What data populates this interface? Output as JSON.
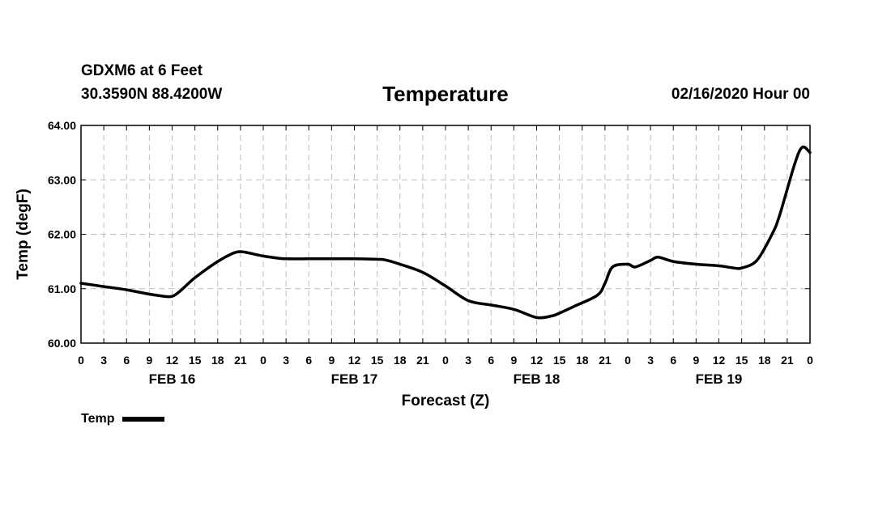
{
  "header": {
    "station": "GDXM6 at 6 Feet",
    "coords": "30.3590N 88.4200W",
    "title": "Temperature",
    "datetime": "02/16/2020 Hour 00"
  },
  "legend": {
    "label": "Temp"
  },
  "chart_data": {
    "type": "line",
    "title": "Temperature",
    "xlabel": "Forecast (Z)",
    "ylabel": "Temp (degF)",
    "ylim": [
      60.0,
      64.0
    ],
    "yticks": [
      "60.00",
      "61.00",
      "62.00",
      "63.00",
      "64.00"
    ],
    "xlim_hours": [
      0,
      96
    ],
    "xtick_labels": [
      "0",
      "3",
      "6",
      "9",
      "12",
      "15",
      "18",
      "21",
      "0",
      "3",
      "6",
      "9",
      "12",
      "15",
      "18",
      "21",
      "0",
      "3",
      "6",
      "9",
      "12",
      "15",
      "18",
      "21",
      "0",
      "3",
      "6",
      "9",
      "12",
      "15",
      "18",
      "21",
      "0"
    ],
    "day_labels": [
      "FEB 16",
      "FEB 17",
      "FEB 18",
      "FEB 19"
    ],
    "grid": true,
    "legend_position": "bottom-left",
    "line_color": "#000000",
    "series": [
      {
        "name": "Temp",
        "x": [
          0,
          3,
          6,
          9,
          11,
          12,
          13,
          15,
          18,
          20,
          21,
          22,
          24,
          26,
          27,
          30,
          33,
          36,
          39,
          40,
          42,
          45,
          48,
          51,
          54,
          57,
          60,
          62,
          63,
          65,
          68,
          69,
          70,
          72,
          73,
          75,
          76,
          78,
          81,
          84,
          86,
          87,
          89,
          91,
          92,
          94,
          95,
          96
        ],
        "y": [
          61.1,
          61.04,
          60.98,
          60.9,
          60.86,
          60.86,
          60.95,
          61.2,
          61.5,
          61.65,
          61.68,
          61.66,
          61.6,
          61.56,
          61.55,
          61.55,
          61.55,
          61.55,
          61.54,
          61.53,
          61.45,
          61.3,
          61.05,
          60.78,
          60.7,
          60.62,
          60.47,
          60.5,
          60.55,
          60.68,
          60.88,
          61.1,
          61.4,
          61.45,
          61.4,
          61.52,
          61.58,
          61.5,
          61.45,
          61.42,
          61.38,
          61.38,
          61.52,
          62.0,
          62.35,
          63.3,
          63.6,
          63.5
        ]
      }
    ]
  }
}
